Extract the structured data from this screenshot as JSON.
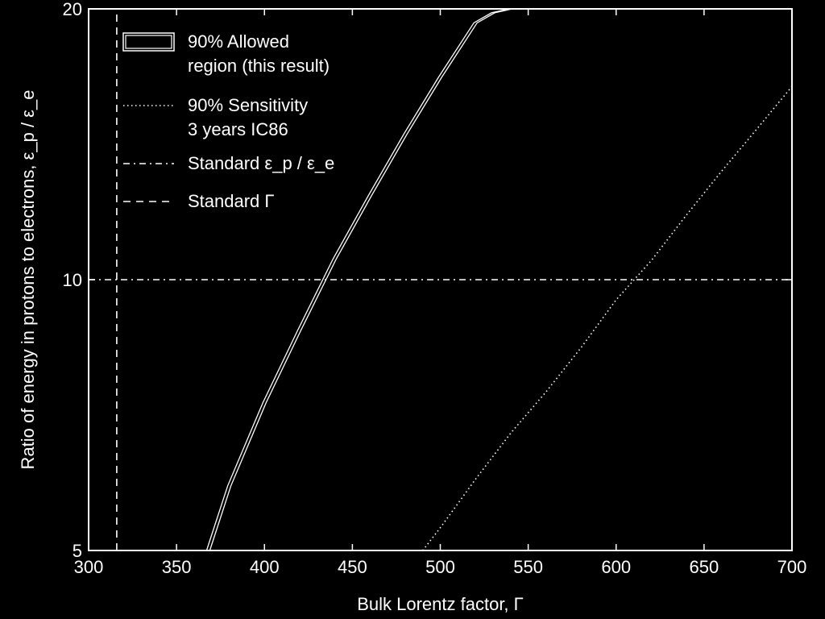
{
  "chart_data": {
    "type": "line",
    "xlabel": "Bulk Lorentz factor, Γ",
    "ylabel": "Ratio of energy in protons to electrons, ε_p / ε_e",
    "xlim": [
      300,
      700
    ],
    "ylim": [
      5,
      20
    ],
    "yscale": "log",
    "x_ticks": [
      300,
      350,
      400,
      450,
      500,
      550,
      600,
      650,
      700
    ],
    "y_ticks": [
      5,
      10,
      20
    ],
    "grid": false,
    "legend_position": "top-left",
    "background": "#000000",
    "foreground": "#ffffff",
    "legend": [
      {
        "style": "box",
        "lines": [
          "90% Allowed",
          "region (this result)"
        ]
      },
      {
        "style": "dotted",
        "lines": [
          "90% Sensitivity",
          "3 years IC86"
        ]
      },
      {
        "style": "dashdot",
        "lines": [
          "Standard ε_p / ε_e"
        ]
      },
      {
        "style": "dashed",
        "lines": [
          "Standard Γ"
        ]
      }
    ],
    "series": [
      {
        "name": "90% Allowed region (this result)",
        "style": "double-solid",
        "x": [
          368,
          380,
          400,
          420,
          440,
          460,
          480,
          500,
          520,
          530,
          540
        ],
        "y": [
          5.0,
          5.9,
          7.3,
          8.8,
          10.55,
          12.4,
          14.5,
          16.8,
          19.3,
          19.8,
          20.0
        ]
      },
      {
        "name": "90% Sensitivity 3 years IC86",
        "style": "dotted",
        "x": [
          490,
          500,
          520,
          540,
          560,
          580,
          600,
          620,
          640,
          660,
          680,
          700
        ],
        "y": [
          5.0,
          5.3,
          6.0,
          6.75,
          7.5,
          8.4,
          9.5,
          10.5,
          11.8,
          13.2,
          14.7,
          16.4
        ]
      },
      {
        "name": "Standard ε_p / ε_e",
        "style": "dashdot",
        "x": [
          300,
          700
        ],
        "y": [
          10,
          10
        ]
      },
      {
        "name": "Standard Γ",
        "style": "dashed",
        "x": [
          316,
          316
        ],
        "y": [
          5,
          20
        ]
      }
    ]
  }
}
